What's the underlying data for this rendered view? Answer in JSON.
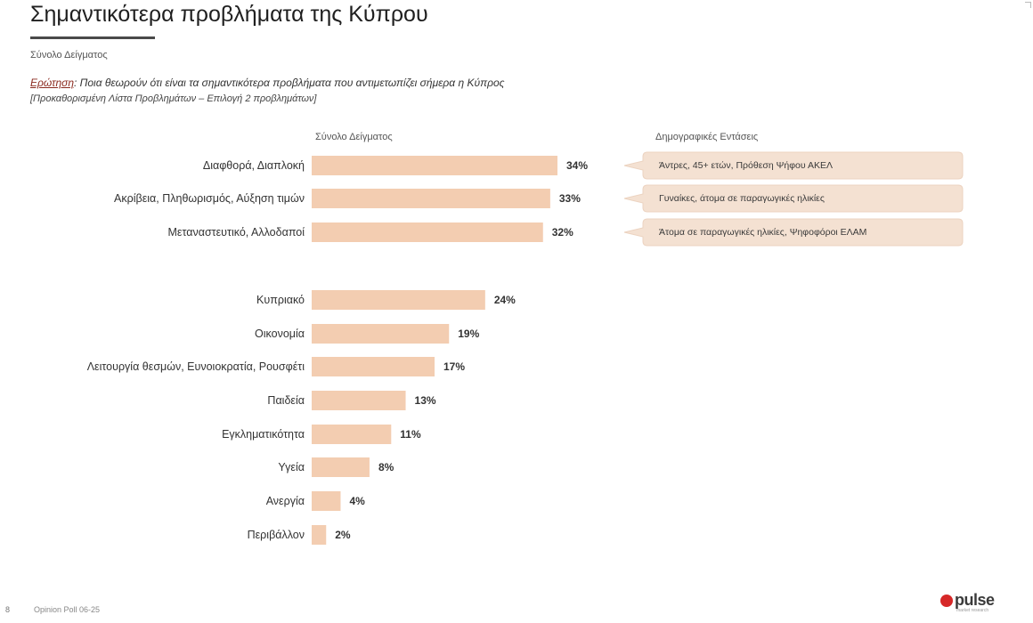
{
  "header": {
    "title": "Σημαντικότερα προβλήματα της Κύπρου",
    "subtitle": "Σύνολο Δείγματος",
    "question_label": "Ερώτηση",
    "question_text": ": Ποια θεωρούν ότι είναι τα σημαντικότερα προβλήματα που αντιμετωπίζει σήμερα η Κύπρος",
    "question_note": "[Προκαθορισμένη Λίστα Προβλημάτων – Επιλογή 2 προβλημάτων]"
  },
  "columns": {
    "sample_header": "Σύνολο Δείγματος",
    "demo_header": "Δημογραφικές Εντάσεις"
  },
  "colors": {
    "bar": "#f3cdb1",
    "callout": "#f4e1d2",
    "accent": "#8b2a1f"
  },
  "chart_data": {
    "type": "bar",
    "orientation": "horizontal",
    "categories": [
      "Διαφθορά, Διαπλοκή",
      "Ακρίβεια, Πληθωρισμός, Αύξηση τιμών",
      "Μεταναστευτικό, Αλλοδαποί",
      "Κυπριακό",
      "Οικονομία",
      "Λειτουργία θεσμών, Ευνοιοκρατία, Ρουσφέτι",
      "Παιδεία",
      "Εγκληματικότητα",
      "Υγεία",
      "Ανεργία",
      "Περιβάλλον"
    ],
    "values": [
      34,
      33,
      32,
      24,
      19,
      17,
      13,
      11,
      8,
      4,
      2
    ],
    "value_labels": [
      "34%",
      "33%",
      "32%",
      "24%",
      "19%",
      "17%",
      "13%",
      "11%",
      "8%",
      "4%",
      "2%"
    ],
    "unit": "%",
    "xlim": [
      0,
      34
    ],
    "grid": false,
    "legend": "none"
  },
  "callouts": [
    "Άντρες, 45+ ετών, Πρόθεση Ψήφου ΑΚΕΛ",
    "Γυναίκες, άτομα σε παραγωγικές ηλικίες",
    "Άτομα σε παραγωγικές ηλικίες, Ψηφοφόροι ΕΛΑΜ"
  ],
  "footer": {
    "page": "8",
    "text": "Opinion Poll 06-25",
    "logo_text": "pulse",
    "logo_sub": "market research"
  }
}
